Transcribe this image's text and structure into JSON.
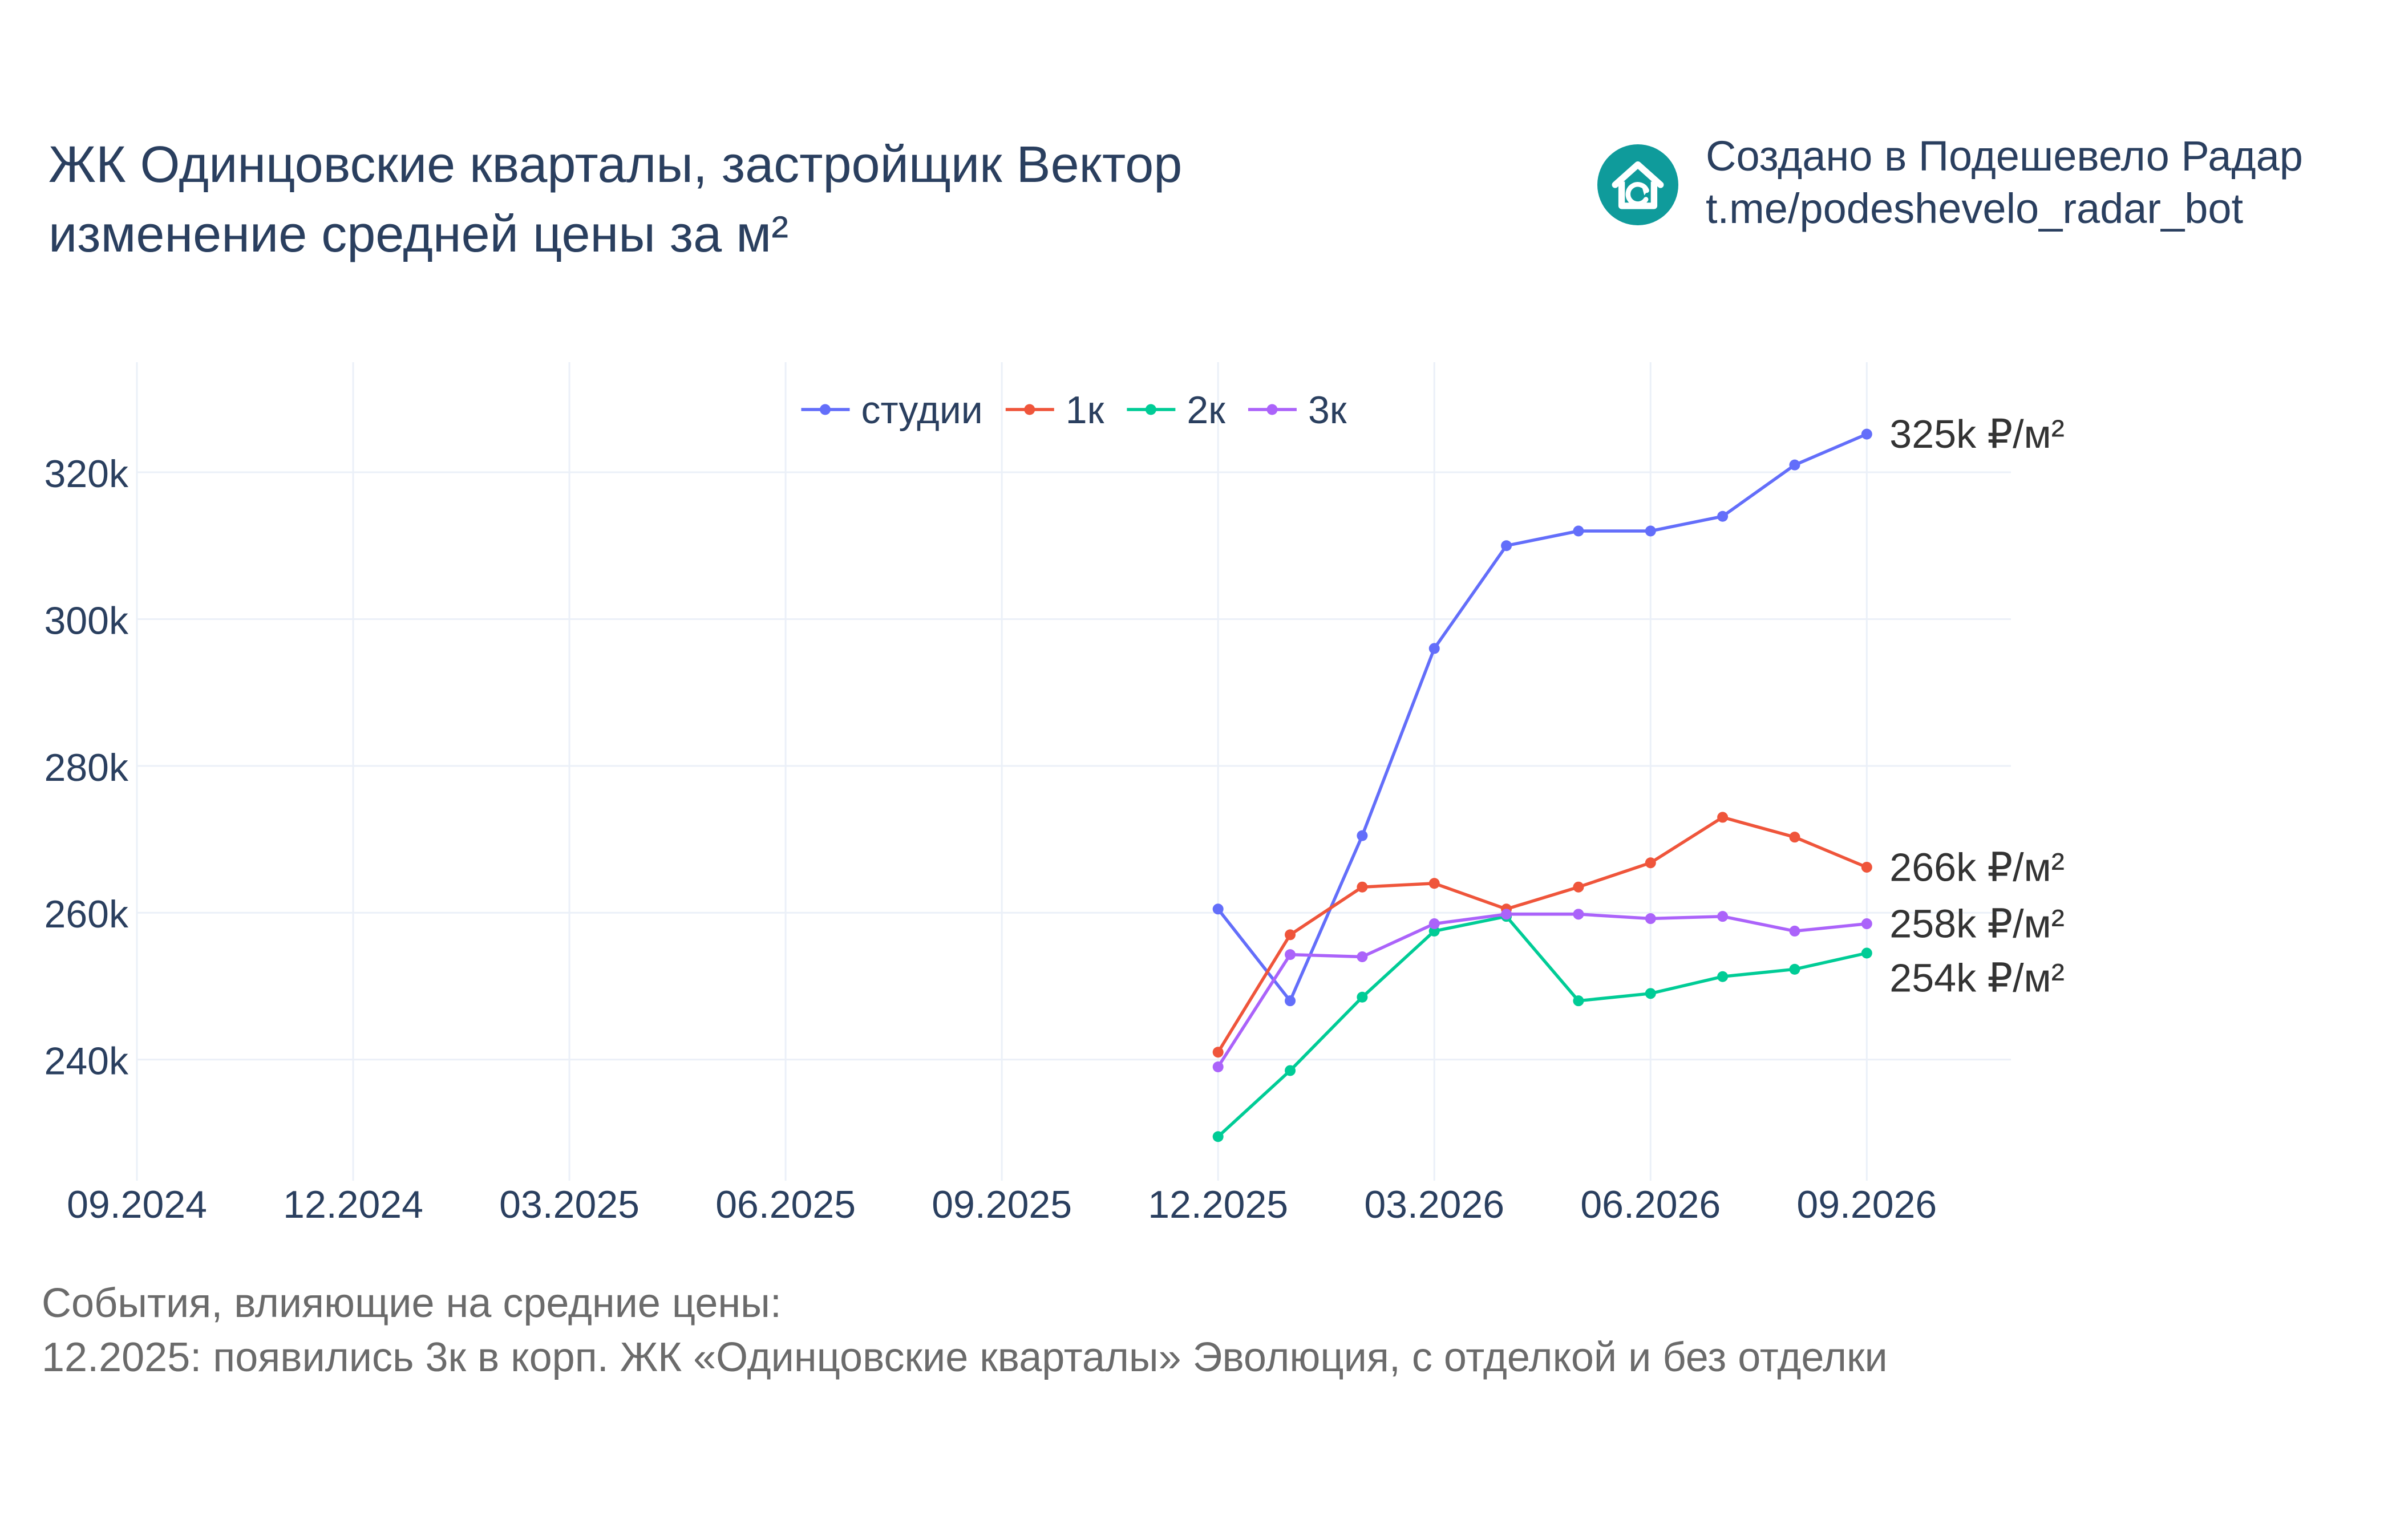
{
  "title": {
    "line1": "ЖК Одинцовские кварталы, застройщик Вектор",
    "line2": "изменение средней цены за м²"
  },
  "branding": {
    "line1": "Создано в Подешевело Радар",
    "line2": "t.me/podeshevelo_radar_bot",
    "logo_icon": "house-refresh-icon",
    "logo_color": "#0f9b9b"
  },
  "events": {
    "heading": "События, влияющие на средние цены:",
    "items": [
      "12.2025: появились 3к в корп. ЖК «Одинцовские кварталы» Эволюция, с отделкой и без отделки"
    ]
  },
  "chart_data": {
    "type": "line",
    "x_ticks": [
      "09.2024",
      "12.2024",
      "03.2025",
      "06.2025",
      "09.2025",
      "12.2025",
      "03.2026",
      "06.2026",
      "09.2026"
    ],
    "y_ticks": [
      {
        "value": 240000,
        "label": "240k"
      },
      {
        "value": 260000,
        "label": "260k"
      },
      {
        "value": 280000,
        "label": "280k"
      },
      {
        "value": 300000,
        "label": "300k"
      },
      {
        "value": 320000,
        "label": "320k"
      }
    ],
    "xlim": [
      "2024-09",
      "2026-11"
    ],
    "ylim": [
      223500,
      335000
    ],
    "grid": true,
    "legend_position": "top-center",
    "x": [
      "2025-12",
      "2026-01",
      "2026-02",
      "2026-03",
      "2026-04",
      "2026-05",
      "2026-06",
      "2026-07",
      "2026-08",
      "2026-09"
    ],
    "series": [
      {
        "name": "студии",
        "color": "#636efa",
        "end_label": "325k ₽/м²",
        "values": [
          260500,
          248000,
          270500,
          296000,
          310000,
          312000,
          312000,
          314000,
          321000,
          325200
        ]
      },
      {
        "name": "1к",
        "color": "#ef553b",
        "end_label": "266k ₽/м²",
        "values": [
          241000,
          257000,
          263500,
          264000,
          260500,
          263500,
          266800,
          273000,
          270300,
          266200
        ]
      },
      {
        "name": "2к",
        "color": "#00cc96",
        "end_label": "254k ₽/м²",
        "values": [
          229500,
          238500,
          248500,
          257500,
          259500,
          248000,
          249000,
          251300,
          252300,
          254500
        ]
      },
      {
        "name": "3к",
        "color": "#ab63fa",
        "end_label": "258k ₽/м²",
        "values": [
          239000,
          254300,
          254000,
          258500,
          259800,
          259800,
          259200,
          259500,
          257500,
          258500
        ]
      }
    ]
  }
}
